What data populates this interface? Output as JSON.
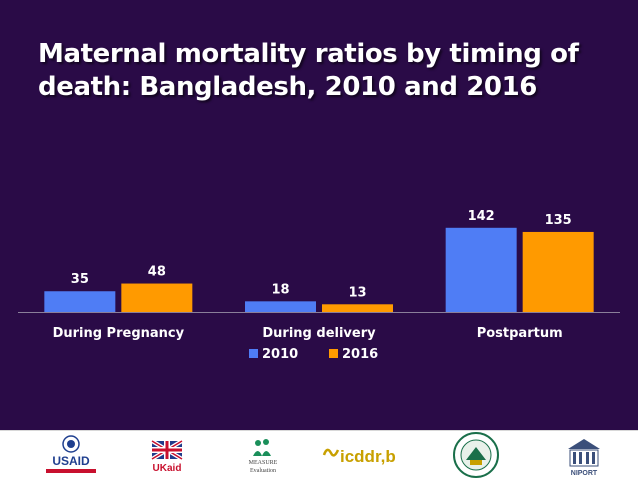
{
  "slide": {
    "title_line1": "Maternal mortality ratios by timing of",
    "title_line2": "death: Bangladesh, 2010 and 2016"
  },
  "chart_data": {
    "type": "bar",
    "categories": [
      "During Pregnancy",
      "During delivery",
      "Postpartum"
    ],
    "series": [
      {
        "name": "2010",
        "values": [
          35,
          18,
          142
        ],
        "color": "#4f7df5"
      },
      {
        "name": "2016",
        "values": [
          48,
          13,
          135
        ],
        "color": "#ff9a00"
      }
    ],
    "title": "Maternal mortality ratios by timing of death: Bangladesh, 2010 and 2016",
    "xlabel": "",
    "ylabel": "",
    "ylim": [
      0,
      160
    ],
    "grid": false,
    "data_labels": true,
    "legend_position": "bottom"
  },
  "footer": {
    "logos": [
      {
        "name": "usaid-logo",
        "text": "USAID"
      },
      {
        "name": "ukaid-logo",
        "text": "UKaid"
      },
      {
        "name": "measure-evaluation-logo",
        "text": "MEASURE Evaluation"
      },
      {
        "name": "icddrb-logo",
        "text": "icddr,b"
      },
      {
        "name": "government-seal-logo",
        "text": ""
      },
      {
        "name": "niport-logo",
        "text": "NIPORT"
      }
    ]
  }
}
